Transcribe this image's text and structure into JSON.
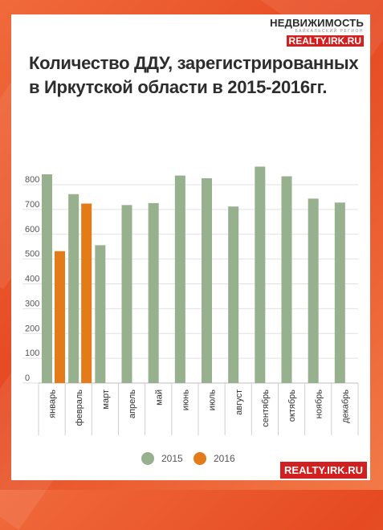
{
  "logo": {
    "top": "НЕДВИЖИМОСТЬ",
    "sub": "байкальский регион",
    "bottom": "REALTY.IRK.RU"
  },
  "footer": {
    "badge": "REALTY.IRK.RU"
  },
  "colors": {
    "series_2015": "#97b08e",
    "series_2016": "#e27b18",
    "background": "#e8552a"
  },
  "chart_data": {
    "type": "bar",
    "title": "Количество ДДУ, зарегистрированных в Иркутской области в 2015-2016гг.",
    "title_lines": [
      "Количество ДДУ, зарегистрированных",
      "в Иркутской области в 2015-2016гг."
    ],
    "categories": [
      "январь",
      "февраль",
      "март",
      "апрель",
      "май",
      "июнь",
      "июль",
      "август",
      "сентябрь",
      "октябрь",
      "ноябрь",
      "декабрь"
    ],
    "series": [
      {
        "name": "2015",
        "values": [
          842,
          762,
          556,
          718,
          726,
          837,
          826,
          712,
          873,
          834,
          744,
          728
        ]
      },
      {
        "name": "2016",
        "values": [
          532,
          724,
          null,
          null,
          null,
          null,
          null,
          null,
          null,
          null,
          null,
          null
        ]
      }
    ],
    "yticks": [
      0,
      100,
      200,
      300,
      400,
      500,
      600,
      700,
      800
    ],
    "ylim": [
      0,
      900
    ],
    "xlabel": "",
    "ylabel": "",
    "grid": true,
    "legend_position": "bottom"
  }
}
